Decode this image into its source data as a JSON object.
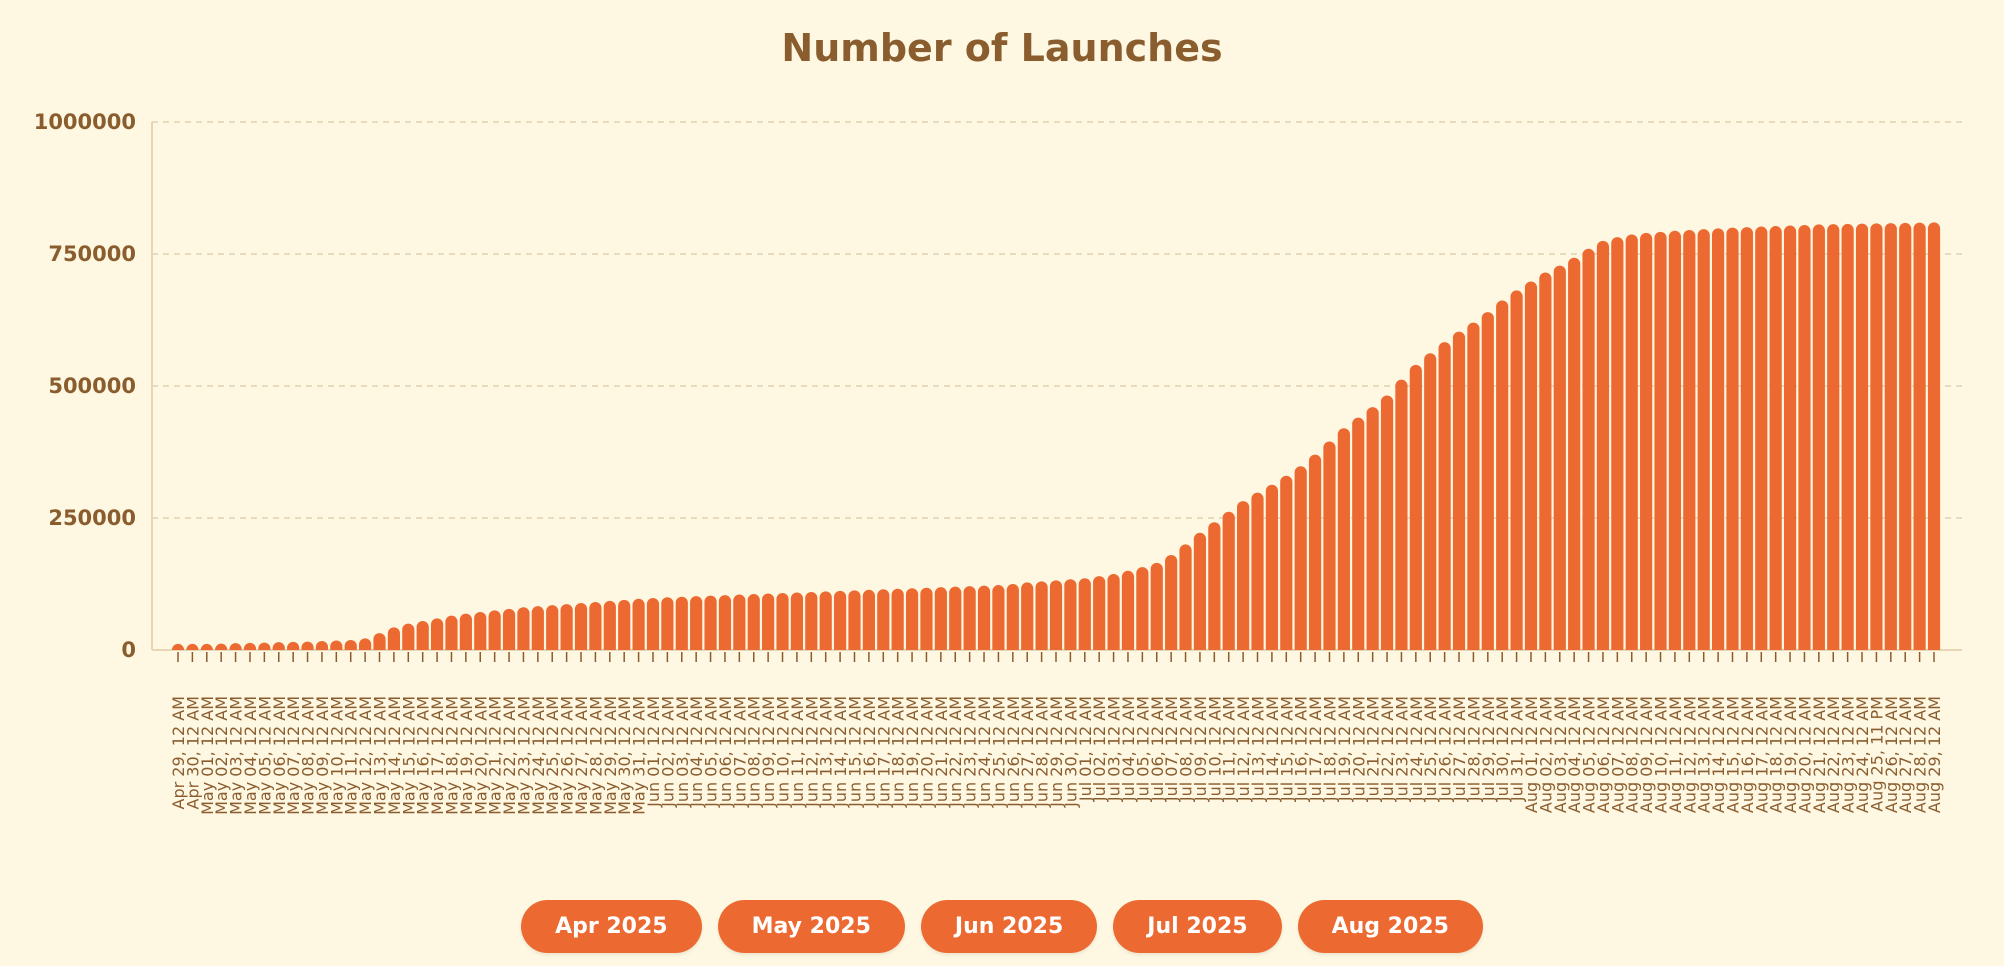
{
  "chart_data": {
    "type": "bar",
    "title": "Number of Launches",
    "ylim": [
      0,
      1000000
    ],
    "yticks": [
      "0",
      "250000",
      "500000",
      "750000",
      "1000000"
    ],
    "grid": "horizontal dashed",
    "colors": {
      "bar": "#ec6a31",
      "text": "#8a5d2f",
      "background": "#fef7e1",
      "grid": "#e2d3b3"
    },
    "categories": [
      "Apr 29, 12 AM",
      "Apr 30, 12 AM",
      "May 01, 12 AM",
      "May 02, 12 AM",
      "May 03, 12 AM",
      "May 04, 12 AM",
      "May 05, 12 AM",
      "May 06, 12 AM",
      "May 07, 12 AM",
      "May 08, 12 AM",
      "May 09, 12 AM",
      "May 10, 12 AM",
      "May 11, 12 AM",
      "May 12, 12 AM",
      "May 13, 12 AM",
      "May 14, 12 AM",
      "May 15, 12 AM",
      "May 16, 12 AM",
      "May 17, 12 AM",
      "May 18, 12 AM",
      "May 19, 12 AM",
      "May 20, 12 AM",
      "May 21, 12 AM",
      "May 22, 12 AM",
      "May 23, 12 AM",
      "May 24, 12 AM",
      "May 25, 12 AM",
      "May 26, 12 AM",
      "May 27, 12 AM",
      "May 28, 12 AM",
      "May 29, 12 AM",
      "May 30, 12 AM",
      "May 31, 12 AM",
      "Jun 01, 12 AM",
      "Jun 02, 12 AM",
      "Jun 03, 12 AM",
      "Jun 04, 12 AM",
      "Jun 05, 12 AM",
      "Jun 06, 12 AM",
      "Jun 07, 12 AM",
      "Jun 08, 12 AM",
      "Jun 09, 12 AM",
      "Jun 10, 12 AM",
      "Jun 11, 12 AM",
      "Jun 12, 12 AM",
      "Jun 13, 12 AM",
      "Jun 14, 12 AM",
      "Jun 15, 12 AM",
      "Jun 16, 12 AM",
      "Jun 17, 12 AM",
      "Jun 18, 12 AM",
      "Jun 19, 12 AM",
      "Jun 20, 12 AM",
      "Jun 21, 12 AM",
      "Jun 22, 12 AM",
      "Jun 23, 12 AM",
      "Jun 24, 12 AM",
      "Jun 25, 12 AM",
      "Jun 26, 12 AM",
      "Jun 27, 12 AM",
      "Jun 28, 12 AM",
      "Jun 29, 12 AM",
      "Jun 30, 12 AM",
      "Jul 01, 12 AM",
      "Jul 02, 12 AM",
      "Jul 03, 12 AM",
      "Jul 04, 12 AM",
      "Jul 05, 12 AM",
      "Jul 06, 12 AM",
      "Jul 07, 12 AM",
      "Jul 08, 12 AM",
      "Jul 09, 12 AM",
      "Jul 10, 12 AM",
      "Jul 11, 12 AM",
      "Jul 12, 12 AM",
      "Jul 13, 12 AM",
      "Jul 14, 12 AM",
      "Jul 15, 12 AM",
      "Jul 16, 12 AM",
      "Jul 17, 12 AM",
      "Jul 18, 12 AM",
      "Jul 19, 12 AM",
      "Jul 20, 12 AM",
      "Jul 21, 12 AM",
      "Jul 22, 12 AM",
      "Jul 23, 12 AM",
      "Jul 24, 12 AM",
      "Jul 25, 12 AM",
      "Jul 26, 12 AM",
      "Jul 27, 12 AM",
      "Jul 28, 12 AM",
      "Jul 29, 12 AM",
      "Jul 30, 12 AM",
      "Jul 31, 12 AM",
      "Aug 01, 12 AM",
      "Aug 02, 12 AM",
      "Aug 03, 12 AM",
      "Aug 04, 12 AM",
      "Aug 05, 12 AM",
      "Aug 06, 12 AM",
      "Aug 07, 12 AM",
      "Aug 08, 12 AM",
      "Aug 09, 12 AM",
      "Aug 10, 12 AM",
      "Aug 11, 12 AM",
      "Aug 12, 12 AM",
      "Aug 13, 12 AM",
      "Aug 14, 12 AM",
      "Aug 15, 12 AM",
      "Aug 16, 12 AM",
      "Aug 17, 12 AM",
      "Aug 18, 12 AM",
      "Aug 19, 12 AM",
      "Aug 20, 12 AM",
      "Aug 21, 12 AM",
      "Aug 22, 12 AM",
      "Aug 23, 12 AM",
      "Aug 24, 12 AM",
      "Aug 25, 11 PM",
      "Aug 26, 12 AM",
      "Aug 27, 12 AM",
      "Aug 28, 12 AM",
      "Aug 29, 12 AM"
    ],
    "values": [
      9000,
      10000,
      11000,
      12000,
      13000,
      13500,
      14000,
      15000,
      15500,
      16000,
      17000,
      18000,
      19000,
      22000,
      32000,
      43000,
      50000,
      55000,
      60000,
      65000,
      69000,
      72000,
      75000,
      78000,
      81000,
      83000,
      85000,
      87000,
      89000,
      91000,
      93000,
      95000,
      97000,
      98500,
      100000,
      101000,
      102000,
      103000,
      104000,
      105000,
      106000,
      107000,
      108000,
      109000,
      110000,
      111000,
      112000,
      113000,
      114000,
      115000,
      116000,
      117000,
      118000,
      119000,
      120000,
      121000,
      122000,
      123000,
      125000,
      128000,
      130000,
      132000,
      134000,
      136000,
      140000,
      144000,
      150000,
      157000,
      165000,
      180000,
      200000,
      222000,
      242000,
      262000,
      282000,
      298000,
      313000,
      330000,
      348000,
      370000,
      395000,
      420000,
      440000,
      460000,
      482000,
      512000,
      540000,
      562000,
      583000,
      603000,
      620000,
      640000,
      662000,
      681000,
      698000,
      715000,
      728000,
      743000,
      760000,
      775000,
      782000,
      787000,
      790000,
      792000,
      794000,
      795500,
      797000,
      798500,
      800000,
      801000,
      802000,
      803000,
      804000,
      805000,
      806000,
      806500,
      807000,
      807500,
      808000,
      808500,
      809000,
      809500,
      810000
    ]
  },
  "month_buttons": [
    "Apr 2025",
    "May 2025",
    "Jun 2025",
    "Jul 2025",
    "Aug 2025"
  ]
}
